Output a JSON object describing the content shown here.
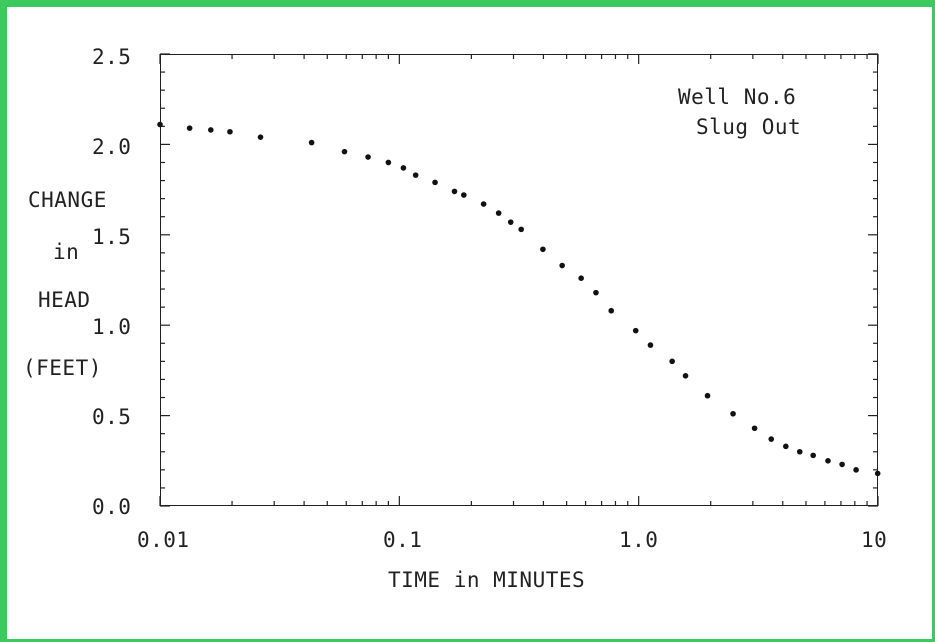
{
  "chart_data": {
    "type": "scatter",
    "annotation": [
      "Well No.6",
      "Slug Out"
    ],
    "xlabel": "TIME in MINUTES",
    "ylabel": [
      "CHANGE",
      "in",
      "HEAD",
      "(FEET)"
    ],
    "xscale": "log",
    "xlim": [
      0.01,
      10
    ],
    "ylim": [
      0.0,
      2.5
    ],
    "x_ticks": [
      "0.01",
      "0.1",
      "1.0",
      "10"
    ],
    "y_ticks": [
      "0.0",
      "0.5",
      "1.0",
      "1.5",
      "2.0",
      "2.5"
    ],
    "grid": false,
    "marker_color": "#111111",
    "series": [
      {
        "x": [
          0.01,
          0.0133,
          0.0163,
          0.0196,
          0.0263,
          0.043,
          0.059,
          0.074,
          0.09,
          0.104,
          0.117,
          0.141,
          0.17,
          0.186,
          0.225,
          0.26,
          0.292,
          0.323,
          0.398,
          0.479,
          0.575,
          0.663,
          0.768,
          0.972,
          1.12,
          1.38,
          1.57,
          1.94,
          2.48,
          3.05,
          3.58,
          4.12,
          4.71,
          5.36,
          6.18,
          7.08,
          8.1,
          9.97
        ],
        "y": [
          2.11,
          2.09,
          2.08,
          2.07,
          2.04,
          2.01,
          1.96,
          1.93,
          1.9,
          1.87,
          1.83,
          1.79,
          1.74,
          1.72,
          1.67,
          1.62,
          1.57,
          1.53,
          1.42,
          1.33,
          1.26,
          1.18,
          1.08,
          0.97,
          0.89,
          0.8,
          0.72,
          0.61,
          0.51,
          0.43,
          0.37,
          0.33,
          0.3,
          0.28,
          0.25,
          0.23,
          0.2,
          0.18
        ]
      }
    ]
  }
}
